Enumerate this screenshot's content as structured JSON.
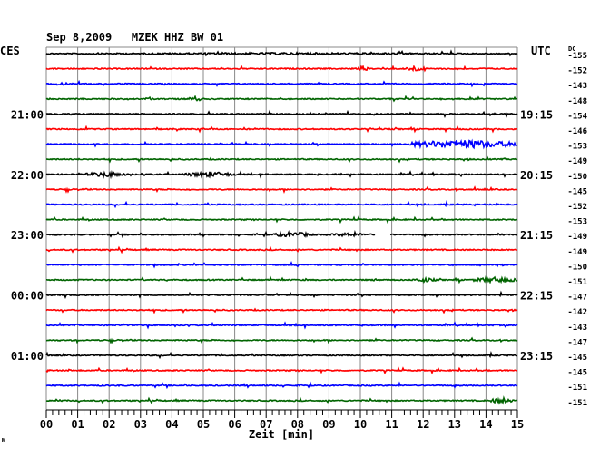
{
  "chart_data": {
    "type": "line",
    "title": "Sep 8,2009   MZEK HHZ BW 01",
    "left_timezone": "CES",
    "right_timezone": "UTC",
    "dc_label": "DC",
    "xlabel": "Zeit [min]",
    "xlim": [
      0,
      15
    ],
    "x_ticks": [
      "00",
      "01",
      "02",
      "03",
      "04",
      "05",
      "06",
      "07",
      "08",
      "09",
      "10",
      "11",
      "12",
      "13",
      "14",
      "15"
    ],
    "minor_ticks_per_minute": 5,
    "grid": true,
    "trace_colors": [
      "#000000",
      "#ff0000",
      "#0000ff",
      "#006400"
    ],
    "left_hour_labels": [
      {
        "trace": 4,
        "label": "21:00"
      },
      {
        "trace": 8,
        "label": "22:00"
      },
      {
        "trace": 12,
        "label": "23:00"
      },
      {
        "trace": 16,
        "label": "00:00"
      },
      {
        "trace": 20,
        "label": "01:00"
      }
    ],
    "right_hour_labels": [
      {
        "trace": 4,
        "label": "19:15"
      },
      {
        "trace": 8,
        "label": "20:15"
      },
      {
        "trace": 12,
        "label": "21:15"
      },
      {
        "trace": 16,
        "label": "22:15"
      },
      {
        "trace": 20,
        "label": "23:15"
      }
    ],
    "dc_values": [
      "-155",
      "-152",
      "-143",
      "-148",
      "-154",
      "-146",
      "-153",
      "-149",
      "-150",
      "-145",
      "-152",
      "-153",
      "-149",
      "-149",
      "-150",
      "-151",
      "-147",
      "-142",
      "-143",
      "-147",
      "-145",
      "-145",
      "-151",
      "-151"
    ],
    "footer_mark": "ᴍ"
  }
}
